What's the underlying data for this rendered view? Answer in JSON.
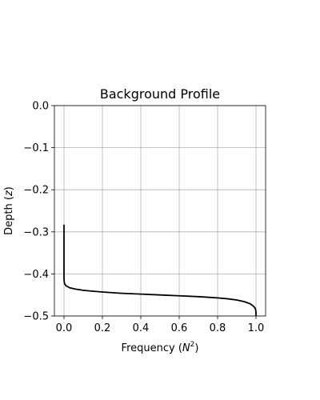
{
  "chart_data": {
    "type": "line",
    "title": "Background Profile",
    "xlabel_prefix": "Frequency (",
    "xlabel_symbol": "N",
    "xlabel_sup": "2",
    "xlabel_suffix": ")",
    "ylabel_prefix": "Depth (",
    "ylabel_symbol": "z",
    "ylabel_suffix": ")",
    "xlim": [
      -0.05,
      1.05
    ],
    "ylim": [
      -0.5,
      0.0
    ],
    "xticks": [
      0.0,
      0.2,
      0.4,
      0.6,
      0.8,
      1.0
    ],
    "xtick_labels": [
      "0.0",
      "0.2",
      "0.4",
      "0.6",
      "0.8",
      "1.0"
    ],
    "yticks": [
      0.0,
      -0.1,
      -0.2,
      -0.3,
      -0.4,
      -0.5
    ],
    "ytick_labels": [
      "0.0",
      "−0.1",
      "−0.2",
      "−0.3",
      "−0.4",
      "−0.5"
    ],
    "grid": true,
    "line_color": "#000000",
    "series": [
      {
        "x": [
          0.0,
          0.0,
          0.0,
          0.001,
          0.003,
          0.01,
          0.03,
          0.06,
          0.1,
          0.15,
          0.2,
          0.3,
          0.4,
          0.5,
          0.6,
          0.7,
          0.8,
          0.85,
          0.9,
          0.94,
          0.97,
          0.985,
          0.995,
          0.999,
          1.0,
          1.0
        ],
        "y": [
          -0.283,
          -0.35,
          -0.41,
          -0.418,
          -0.423,
          -0.428,
          -0.433,
          -0.436,
          -0.439,
          -0.441,
          -0.443,
          -0.446,
          -0.448,
          -0.45,
          -0.452,
          -0.454,
          -0.457,
          -0.459,
          -0.462,
          -0.466,
          -0.471,
          -0.476,
          -0.481,
          -0.487,
          -0.493,
          -0.5
        ]
      }
    ]
  }
}
